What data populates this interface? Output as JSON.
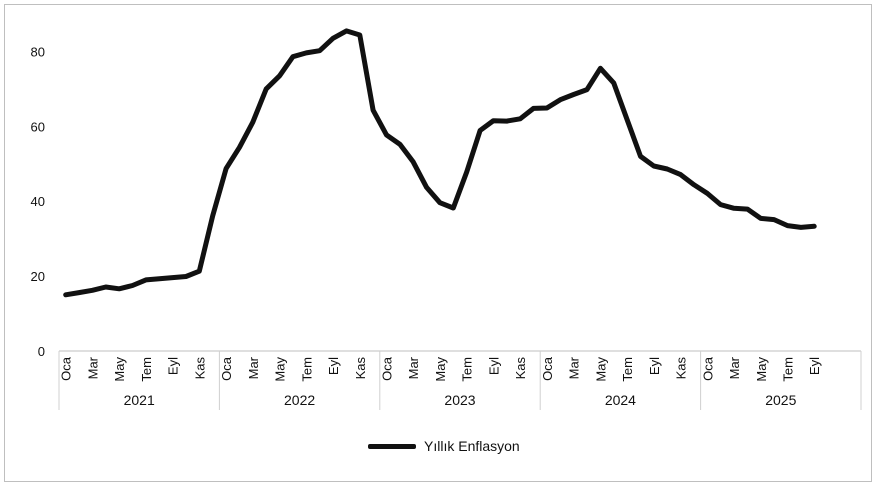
{
  "chart_data": {
    "type": "line",
    "title": "",
    "xlabel": "",
    "ylabel": "",
    "ylim": [
      0,
      90
    ],
    "yticks": [
      0,
      20,
      40,
      60,
      80
    ],
    "grid": false,
    "legend_position": "bottom",
    "month_tick_labels": [
      "Oca",
      "Mar",
      "May",
      "Tem",
      "Eyl",
      "Kas"
    ],
    "years": [
      "2021",
      "2022",
      "2023",
      "2024",
      "2025"
    ],
    "series": [
      {
        "name": "Yıllık Enflasyon",
        "color": "#111111",
        "x": [
          "2021-01",
          "2021-02",
          "2021-03",
          "2021-04",
          "2021-05",
          "2021-06",
          "2021-07",
          "2021-08",
          "2021-09",
          "2021-10",
          "2021-11",
          "2021-12",
          "2022-01",
          "2022-02",
          "2022-03",
          "2022-04",
          "2022-05",
          "2022-06",
          "2022-07",
          "2022-08",
          "2022-09",
          "2022-10",
          "2022-11",
          "2022-12",
          "2023-01",
          "2023-02",
          "2023-03",
          "2023-04",
          "2023-05",
          "2023-06",
          "2023-07",
          "2023-08",
          "2023-09",
          "2023-10",
          "2023-11",
          "2023-12",
          "2024-01",
          "2024-02",
          "2024-03",
          "2024-04",
          "2024-05",
          "2024-06",
          "2024-07",
          "2024-08",
          "2024-09",
          "2024-10",
          "2024-11",
          "2024-12",
          "2025-01",
          "2025-02",
          "2025-03",
          "2025-04",
          "2025-05",
          "2025-06",
          "2025-07",
          "2025-08",
          "2025-09"
        ],
        "values": [
          15.0,
          15.6,
          16.2,
          17.1,
          16.6,
          17.5,
          19.0,
          19.3,
          19.6,
          19.9,
          21.3,
          36.1,
          48.7,
          54.4,
          61.1,
          70.0,
          73.5,
          78.6,
          79.6,
          80.2,
          83.5,
          85.5,
          84.4,
          64.3,
          57.7,
          55.2,
          50.5,
          43.7,
          39.6,
          38.2,
          47.8,
          58.9,
          61.5,
          61.4,
          62.0,
          64.8,
          64.9,
          67.1,
          68.5,
          69.8,
          75.5,
          71.6,
          61.8,
          52.0,
          49.4,
          48.6,
          47.1,
          44.4,
          42.1,
          39.1,
          38.1,
          37.9,
          35.4,
          35.1,
          33.5,
          33.0,
          33.3
        ]
      }
    ]
  }
}
